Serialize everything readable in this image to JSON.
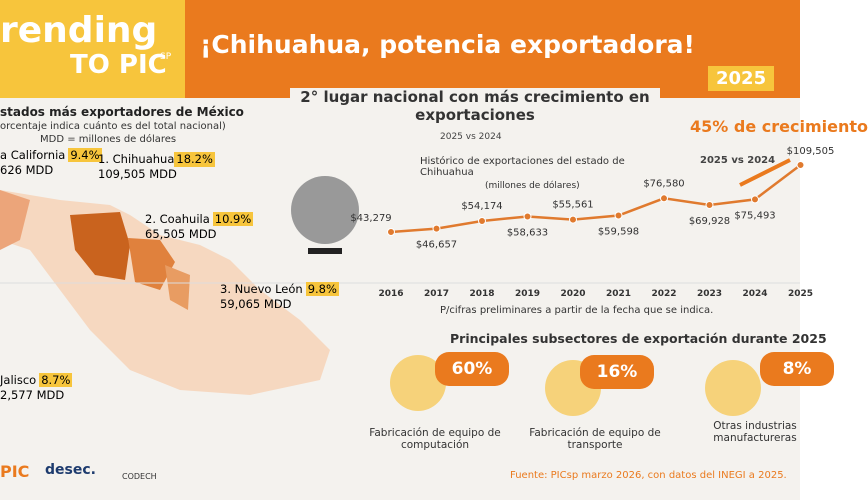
{
  "brand": {
    "line1": "rending",
    "line2": "TO PIC",
    "sup": "SP"
  },
  "header": {
    "title": "¡Chihuahua, potencia exportadora!",
    "year": "2025"
  },
  "states": {
    "title": "stados más exportadores de México",
    "subtitle": "orcentaje indica cuánto es del total nacional)",
    "note": "MDD = millones de dólares",
    "items": [
      {
        "name": "a California",
        "pct": "9.4%",
        "amount": "626 MDD"
      },
      {
        "name": "1.    Chihuahua",
        "pct": "18.2%",
        "amount": "109,505 MDD"
      },
      {
        "name": "2. Coahuila",
        "pct": "10.9%",
        "amount": "65,505 MDD"
      },
      {
        "name": "3. Nuevo León",
        "pct": "9.8%",
        "amount": "59,065 MDD"
      },
      {
        "name": "Jalisco",
        "pct": "8.7%",
        "amount": "2,577 MDD"
      }
    ]
  },
  "growth": {
    "headline": "2° lugar nacional con más crecimiento en exportaciones",
    "sub": "2025 vs 2024",
    "pct": "45%",
    "pct_text": "de crecimiento",
    "pct_sub": "2025 vs 2024"
  },
  "chart_data": {
    "type": "line",
    "title": "Histórico de exportaciones del estado de Chihuahua",
    "subtitle": "(millones de dólares)",
    "color": "#e07a2e",
    "categories": [
      "2016",
      "2017",
      "2018",
      "2019",
      "2020",
      "2021",
      "2022",
      "2023",
      "2024",
      "2025"
    ],
    "values": [
      43279,
      46657,
      54174,
      58633,
      55561,
      59598,
      76580,
      69928,
      75493,
      109505
    ],
    "value_labels": [
      "$43,279",
      "$46,657",
      "$54,174",
      "$58,633",
      "$55,561",
      "$59,598",
      "$76,580",
      "$69,928",
      "$75,493",
      "$109,505"
    ],
    "note": "P/cifras preliminares a partir de la fecha que se indica."
  },
  "subsectors": {
    "title": "Principales subsectores de exportación durante 2025",
    "items": [
      {
        "pct": "60%",
        "label": "Fabricación de equipo de computación"
      },
      {
        "pct": "16%",
        "label": "Fabricación de equipo de transporte"
      },
      {
        "pct": "8%",
        "label": "Otras industrias manufactureras"
      }
    ]
  },
  "footer": {
    "source": "Fuente: PICsp marzo 2026, con datos del INEGI a 2025.",
    "logos": [
      "PIC",
      "desec.",
      "CODECH"
    ]
  }
}
